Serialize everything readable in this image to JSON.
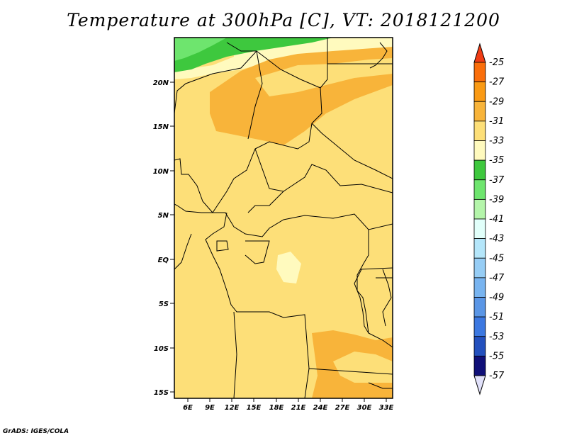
{
  "title": "Temperature at 300hPa [C], VT: 2018121200",
  "credit": "GrADS: IGES/COLA",
  "map": {
    "lat_ticks": [
      "20N",
      "15N",
      "10N",
      "5N",
      "EQ",
      "5S",
      "10S",
      "15S"
    ],
    "lon_ticks": [
      "6E",
      "9E",
      "12E",
      "15E",
      "18E",
      "21E",
      "24E",
      "27E",
      "30E",
      "33E"
    ]
  },
  "colorbar": {
    "labels": [
      "-25",
      "-27",
      "-29",
      "-31",
      "-33",
      "-35",
      "-37",
      "-39",
      "-41",
      "-43",
      "-45",
      "-47",
      "-49",
      "-51",
      "-53",
      "-55",
      "-57"
    ],
    "colors": [
      "#f03c14",
      "#fa6e0a",
      "#fa9a14",
      "#f8b43a",
      "#fddf78",
      "#fffabe",
      "#3ec83e",
      "#6ee56e",
      "#b4f5aa",
      "#e1fffa",
      "#b4e6fa",
      "#96cdf5",
      "#78b4f0",
      "#5a96e6",
      "#3c78e1",
      "#2350be",
      "#0f0f78",
      "#e1e1fa"
    ]
  }
}
